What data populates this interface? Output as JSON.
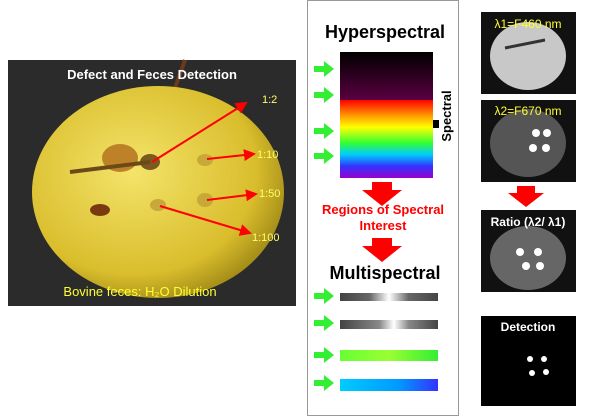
{
  "left_panel": {
    "title": "Defect and Feces Detection",
    "dilutions": [
      "1:2",
      "1:10",
      "1:50",
      "1:100"
    ],
    "caption": "Bovine feces: H₂O  Dilution"
  },
  "middle_panel": {
    "hyperspectral": "Hyperspectral",
    "axis_label": "Spectral",
    "regions": "Regions of Spectral Interest",
    "multispectral": "Multispectral"
  },
  "right_panel": {
    "images": [
      "λ1=F460 nm",
      "λ2=F670 nm",
      "Ratio (λ2/ λ1)",
      "Detection"
    ]
  }
}
